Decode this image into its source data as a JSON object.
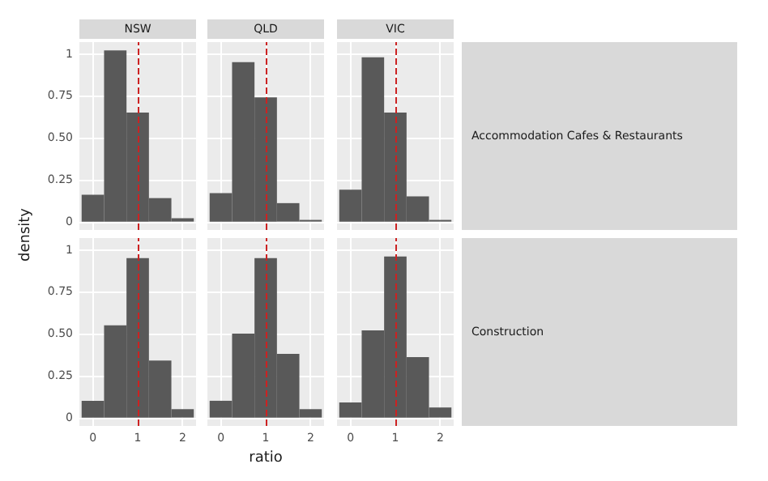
{
  "chart_data": [
    {
      "type": "histogram",
      "title": "NSW",
      "bins": [
        -0.25,
        0.25,
        0.75,
        1.25,
        1.75,
        2.25
      ],
      "values": [
        0.16,
        1.02,
        0.65,
        0.14,
        0.02
      ],
      "color": "#595959",
      "xlim": [
        -0.3,
        2.3
      ],
      "ylim": [
        -0.05,
        1.07
      ],
      "xticks": [
        0,
        1,
        2
      ],
      "yticks": [
        0,
        0.25,
        {
          "value": 0.5,
          "label": "0.50"
        },
        0.75,
        1
      ],
      "grid": true,
      "tick_labels": "y",
      "ref_lines": [
        {
          "axis": "x",
          "value": 1,
          "color": "#cc2222",
          "line_style": "dashed"
        }
      ]
    },
    {
      "type": "histogram",
      "title": "QLD",
      "bins": [
        -0.25,
        0.25,
        0.75,
        1.25,
        1.75,
        2.25
      ],
      "values": [
        0.17,
        0.95,
        0.74,
        0.11,
        0.01
      ],
      "color": "#595959",
      "xlim": [
        -0.3,
        2.3
      ],
      "ylim": [
        -0.05,
        1.07
      ],
      "xticks": [
        0,
        1,
        2
      ],
      "yticks": [
        0,
        0.25,
        0.5,
        0.75,
        1
      ],
      "grid": true,
      "tick_labels": false,
      "ref_lines": [
        {
          "axis": "x",
          "value": 1,
          "color": "#cc2222",
          "line_style": "dashed"
        }
      ]
    },
    {
      "type": "histogram",
      "title": "VIC",
      "bins": [
        -0.25,
        0.25,
        0.75,
        1.25,
        1.75,
        2.25
      ],
      "values": [
        0.19,
        0.98,
        0.65,
        0.15,
        0.01
      ],
      "color": "#595959",
      "xlim": [
        -0.3,
        2.3
      ],
      "ylim": [
        -0.05,
        1.07
      ],
      "xticks": [
        0,
        1,
        2
      ],
      "yticks": [
        0,
        0.25,
        0.5,
        0.75,
        1
      ],
      "grid": true,
      "tick_labels": false,
      "annotations": [
        "Accommodation Cafes & Restaurants"
      ],
      "ref_lines": [
        {
          "axis": "x",
          "value": 1,
          "color": "#cc2222",
          "line_style": "dashed"
        }
      ]
    },
    {
      "type": "histogram",
      "ylabel": "density",
      "bins": [
        -0.25,
        0.25,
        0.75,
        1.25,
        1.75,
        2.25
      ],
      "values": [
        0.1,
        0.55,
        0.95,
        0.34,
        0.05
      ],
      "color": "#595959",
      "xlim": [
        -0.3,
        2.3
      ],
      "ylim": [
        -0.05,
        1.07
      ],
      "xticks": [
        0,
        1,
        2
      ],
      "yticks": [
        0,
        0.25,
        {
          "value": 0.5,
          "label": "0.50"
        },
        0.75,
        1
      ],
      "grid": true,
      "ref_lines": [
        {
          "axis": "x",
          "value": 1,
          "color": "#cc2222",
          "line_style": "dashed"
        }
      ]
    },
    {
      "type": "histogram",
      "xlabel": "ratio",
      "bins": [
        -0.25,
        0.25,
        0.75,
        1.25,
        1.75,
        2.25
      ],
      "values": [
        0.1,
        0.5,
        0.95,
        0.38,
        0.05
      ],
      "color": "#595959",
      "xlim": [
        -0.3,
        2.3
      ],
      "ylim": [
        -0.05,
        1.07
      ],
      "xticks": [
        0,
        1,
        2
      ],
      "yticks": [
        0,
        0.25,
        0.5,
        0.75,
        1
      ],
      "grid": true,
      "tick_labels": "x",
      "ref_lines": [
        {
          "axis": "x",
          "value": 1,
          "color": "#cc2222",
          "line_style": "dashed"
        }
      ]
    },
    {
      "type": "histogram",
      "bins": [
        -0.25,
        0.25,
        0.75,
        1.25,
        1.75,
        2.25
      ],
      "values": [
        0.09,
        0.52,
        0.96,
        0.36,
        0.06
      ],
      "color": "#595959",
      "xlim": [
        -0.3,
        2.3
      ],
      "ylim": [
        -0.05,
        1.07
      ],
      "xticks": [
        0,
        1,
        2
      ],
      "yticks": [
        0,
        0.25,
        0.5,
        0.75,
        1
      ],
      "grid": true,
      "tick_labels": "x",
      "annotations": [
        "Construction"
      ],
      "ref_lines": [
        {
          "axis": "x",
          "value": 1,
          "color": "#cc2222",
          "line_style": "dashed"
        }
      ]
    }
  ]
}
